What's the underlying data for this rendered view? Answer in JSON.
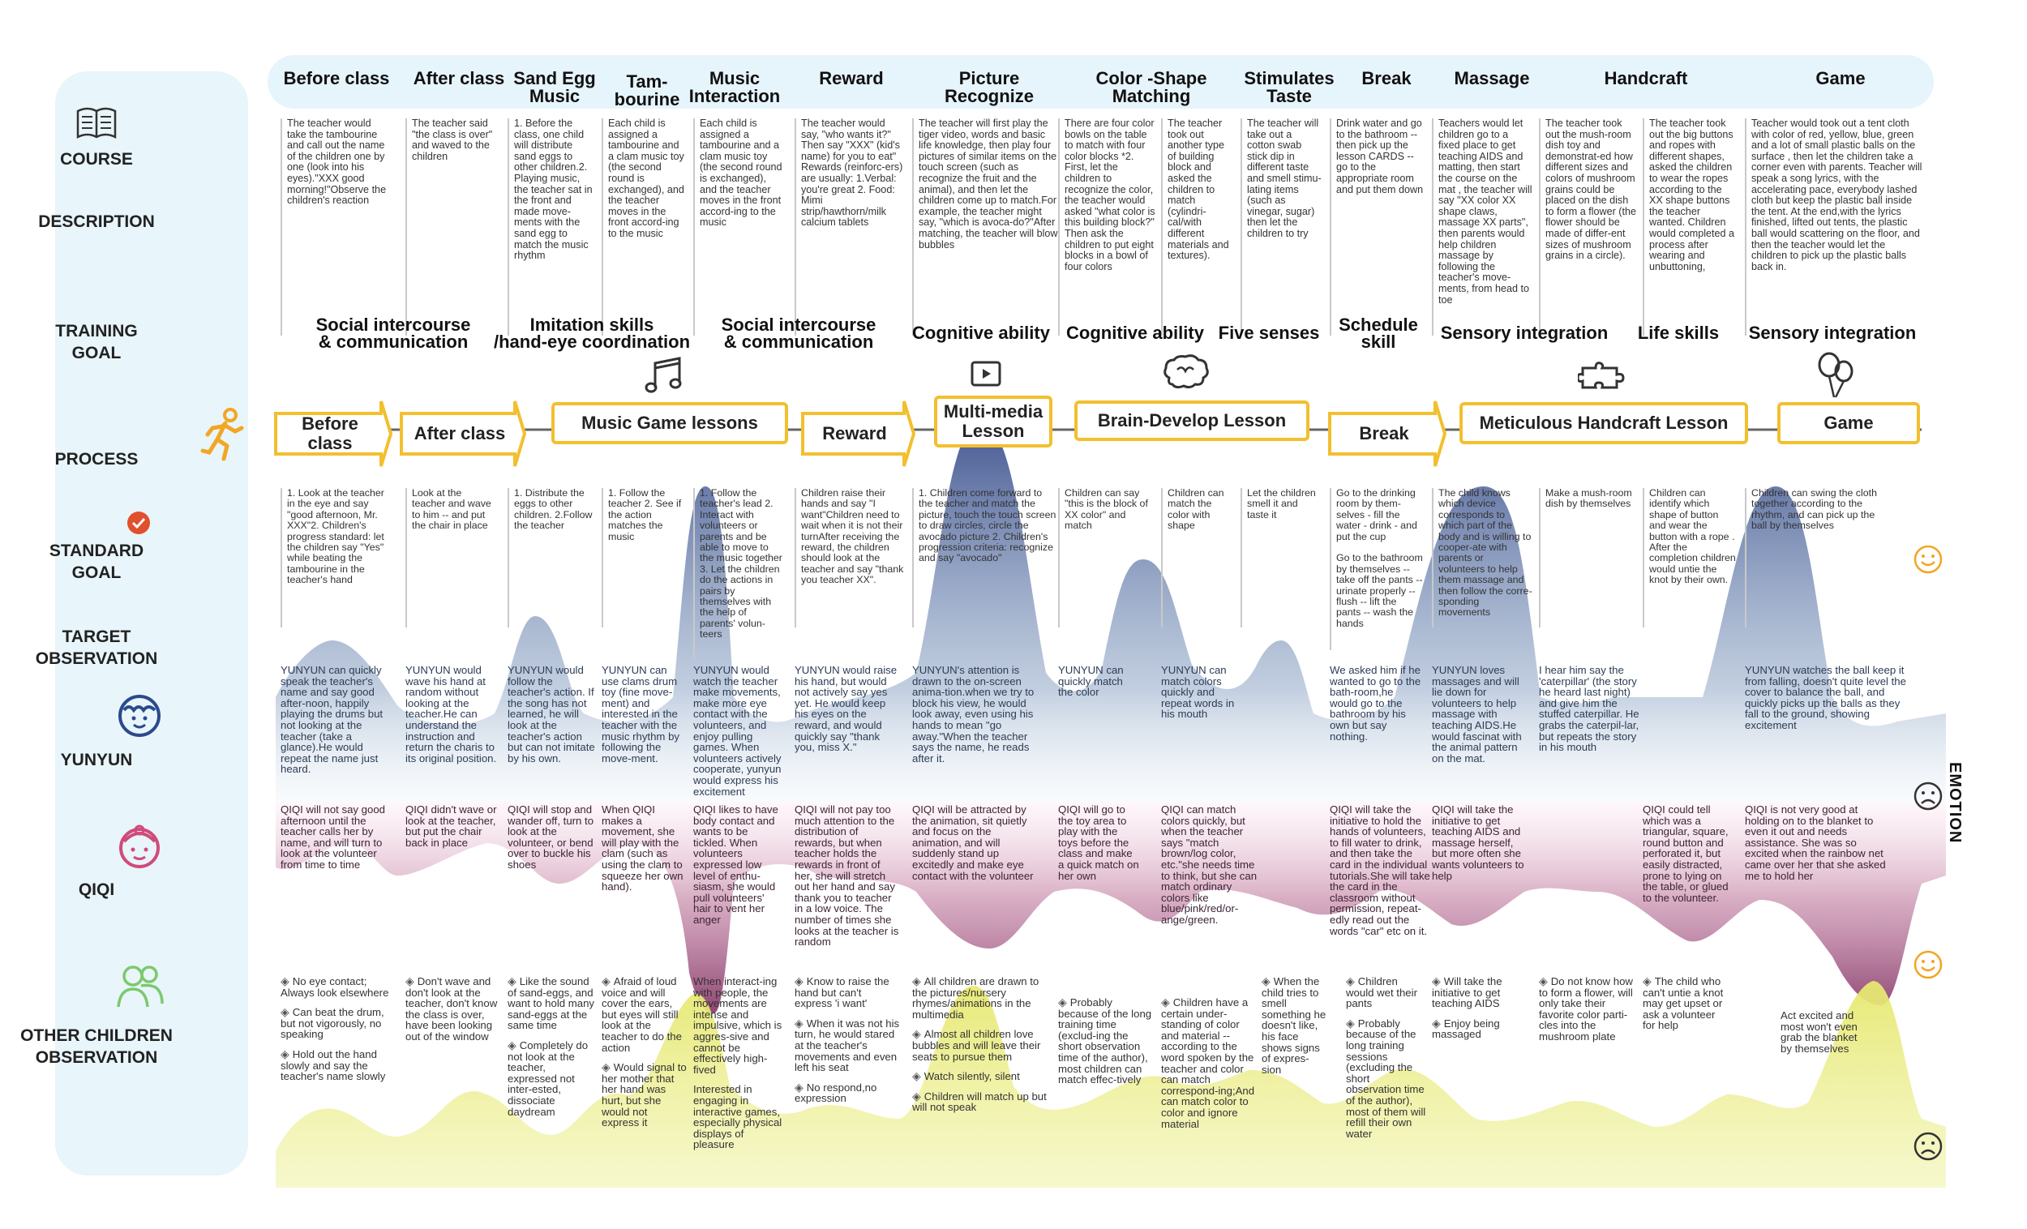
{
  "row_labels": {
    "course": "COURSE",
    "description": "DESCRIPTION",
    "training_goal": "TRAINING\nGOAL",
    "process": "PROCESS",
    "standard_goal": "STANDARD\nGOAL",
    "target_observation": "TARGET\nOBSERVATION",
    "yunyun": "YUNYUN",
    "qiqi": "QIQI",
    "other_children": "OTHER CHILDREN\nOBSERVATION"
  },
  "emotion_label": "EMOTION",
  "phases": [
    {
      "label": "Before class",
      "desc": "The teacher would take the tambourine and call out the name of the children one by one (look into his eyes).\"XXX good morning!\"Observe the children's reaction"
    },
    {
      "label": "After class",
      "desc": "The teacher said \"the class is over\" and waved to the children"
    },
    {
      "label": "Sand Egg\nMusic",
      "desc": "1. Before the class, one child will distribute sand eggs to other children.2. Playing music, the teacher sat in the front and made move-ments with the sand egg to match the music rhythm"
    },
    {
      "label": "Tam-\nbourine",
      "desc": "Each child is assigned a tambourine and a clam music toy (the second round is exchanged), and the teacher moves in the front accord-ing to the music"
    },
    {
      "label": "Music\nInteraction",
      "desc": "Each child is assigned a tambourine and a clam music toy (the second round is exchanged), and the teacher moves in the front accord-ing to the music"
    },
    {
      "label": "Reward",
      "desc": "The teacher would say, \"who wants it?\" Then say \"XXX\" (kid's name) for you to eat\" Rewards (reinforc-ers) are usually: 1.Verbal: you're great 2. Food: Mimi strip/hawthorn/milk calcium tablets"
    },
    {
      "label": "Picture\nRecognize",
      "desc": "The teacher will first play the tiger video, words and basic life knowledge, then play four pictures of similar items on the touch screen (such as recognize the fruit and the animal), and then let the children come up to match.For example, the teacher might say, \"which is avoca-do?\"After matching, the teacher will blow bubbles"
    },
    {
      "label": "Color -Shape\nMatching",
      "desc": "There are four color bowls on the table to match with four color blocks *2. First, let the children to recognize the color, the teacher would asked \"what color is this building block?\" Then ask the children to put eight blocks in a bowl of four colors"
    },
    {
      "label": "",
      "desc": "The teacher took out another type of building block and asked the children to match (cylindri-cal/with different materials and textures)."
    },
    {
      "label": "Stimulates\nTaste",
      "desc": "The teacher will take out a cotton swab stick dip in different taste and smell stimu-lating items (such as vinegar, sugar) then let the children to try"
    },
    {
      "label": "Break",
      "desc": "Drink water and go to the bathroom -- then pick up the lesson CARDS -- go to the appropriate room and put them down"
    },
    {
      "label": "Massage",
      "desc": "Teachers would let children go to a fixed place to get teaching AIDS and matting, then start the course on the mat , the teacher will say \"XX color XX shape claws, massage XX parts\", then parents would help children massage by following the teacher's move-ments, from head to toe"
    },
    {
      "label": "Handcraft",
      "desc": "The teacher took out the mush-room dish toy and demonstrat-ed how different sizes and colors of mushroom grains could be placed on the dish to form a flower (the flower should be made of differ-ent sizes of mushroom grains in a circle)."
    },
    {
      "label": "",
      "desc": "The teacher took out the big buttons and ropes with different shapes, asked the children to wear the ropes according to the XX shape buttons the teacher wanted. Children would completed a process after wearing and unbuttoning,"
    },
    {
      "label": "Game",
      "desc": "Teacher would took out a tent cloth with color of red, yellow, blue, green and a lot of small plastic balls on the surface , then let the children take a corner even with parents. Teacher will speak a song lyrics, with the accelerating pace, everybody lashed cloth but keep the plastic ball inside the tent. At the end,with the lyrics finished, lifted out tents, the plastic ball would scattering on the floor, and then the teacher would let the children to pick up the plastic balls back in."
    }
  ],
  "training_goals": [
    "Social intercourse\n& communication",
    "Imitation skills\n/hand-eye coordination",
    "Social intercourse\n& communication",
    "Cognitive ability",
    "Cognitive ability",
    "Five senses",
    "Schedule\nskill",
    "Sensory integration",
    "Life skills",
    "Sensory integration"
  ],
  "process": [
    "Before class",
    "After class",
    "Music Game lessons",
    "Reward",
    "Multi-media\nLesson",
    "Brain-Develop Lesson",
    "Break",
    "Meticulous Handcraft Lesson",
    "Game"
  ],
  "standard_goals": [
    "1. Look at the teacher in the eye and say \"good afternoon, Mr. XXX\"2. Children's progress standard: let the children say \"Yes\" while beating the tambourine in the teacher's hand",
    "Look at the teacher and wave to him -- and put the chair in place",
    "1. Distribute the eggs to other children. 2.Follow the teacher",
    "1. Follow the teacher 2. See if the action matches the music",
    "1. Follow the teacher's lead 2. Interact with volunteers or parents and be able to move to the music together 3. Let the children do the actions in pairs by themselves with the help of parents' volun-teers",
    "Children raise their hands and say \"I want\"Children need to wait when it is not their turnAfter receiving the reward, the children should look at the teacher and say \"thank you teacher XX\".",
    "1. Children come forward to the teacher and match the picture, touch the touch screen to draw circles, circle the avocado picture 2. Children's progression criteria: recognize and say \"avocado\"",
    "Children can say \"this is the block of XX color\" and match",
    "Children can match the color with shape",
    "Let the children smell it and taste it",
    "Go to the drinking room by them-selves - fill the water - drink - and put the cup\n\nGo to the bathroom by themselves -- take off the pants -- urinate properly -- flush -- lift the pants -- wash the hands",
    "The child knows which device corresponds to which part of the body and is willing to cooper-ate with parents or volunteers to help them massage and then follow the corre-sponding movements",
    "Make a mush-room dish by themselves",
    "Children can identify which shape of button and wear the button with a rope . After the completion children would untie the knot by their own.",
    "Children can swing the cloth together according to the rhythm, and can pick up the ball by themselves"
  ],
  "yunyun_obs": [
    "YUNYUN can quickly speak the teacher's name and say good after-noon, happily playing the drums but not looking at the teacher (take a glance).He would repeat the name just heard.",
    "YUNYUN would wave his hand at random without looking at the teacher.He can understand the instruction and return the charis to its original position.",
    "YUNYUN would follow the teacher's action. If the song has not learned, he will look at the teacher's action but can not imitate by his own.",
    "YUNYUN can use clams drum toy (fine move-ment) and interested in the teacher with the music rhythm by following the move-ment.",
    "YUNYUN would watch the teacher make movements, make more eye contact with the volunteers, and enjoy pulling games. When volunteers actively cooperate, yunyun would express his excitement",
    "YUNYUN would raise his hand, but would not actively say yes yet. He would keep his eyes on the reward, and would quickly say \"thank you, miss X.\"",
    "YUNYUN's attention is drawn to the on-screen anima-tion.when we try to block his view, he would look away, even using his hands to mean \"go away.\"When the teacher says the name, he reads after it.",
    "YUNYUN can quickly match the color",
    "YUNYUN can match colors quickly and repeat words in his mouth",
    "",
    "We asked him if he wanted to go to the bath-room,he would go to the bathroom by his own but say nothing.",
    "YUNYUN loves massages and will lie down for volunteers to help massage with teaching AIDS.He would fascinat with the animal pattern on the mat.",
    "I hear him say the 'caterpillar' (the story he heard last night) and give him the stuffed caterpillar. He grabs the caterpil-lar, but repeats the story in his mouth",
    "",
    "YUNYUN watches the ball keep it from falling, doesn't quite level the cover to balance the ball, and quickly picks up the balls as they fall to the ground, showing excitement"
  ],
  "qiqi_obs": [
    "QIQI will not say good afternoon until the teacher calls her by name, and will turn to look at the volunteer from time to time",
    "QIQI didn't wave or look at the teacher, but put the chair back in place",
    "QIQI will stop and wander off, turn to look at the volunteer, or bend over to buckle his shoes",
    "When QIQI makes a movement, she will play with the clam (such as using the clam to squeeze her own hand).",
    "QIQI likes to have body contact and wants to be tickled. When volunteers expressed low level of enthu-siasm, she would pull volunteers' hair to vent her anger",
    "QIQI will not pay too much attention to the distribution of rewards, but when teacher holds the rewards in front of her, she will stretch out her hand and say thank you to teacher in a low voice. The number of times she looks at the teacher is random",
    "QIQI will be attracted by the animation, sit quietly and focus on the animation, and will suddenly stand up excitedly and make eye contact with the volunteer",
    "QIQI will go to the toy area to play with the toys before the class and make a quick match on her own",
    "QIQI can match colors quickly, but when the teacher says \"match brown/log color, etc.\"she needs time to think, but she can match ordinary colors like blue/pink/red/or-ange/green.",
    "",
    "QIQI will take the initiative to hold the hands of volunteers, to fill water to drink, and then take the card in the individual tutorials.She will take the card in the classroom without permission, repeat-edly read out the words \"car\" etc on it.",
    "QIQI will take the initiative to get teaching AIDS and massage herself, but more often she wants volunteers to help",
    "",
    "QIQI could tell which was a triangular, square, round button and perforated it, but easily distracted, prone to lying on the table, or glued to the volunteer.",
    "QIQI is not very good at holding on to the blanket to even it out and needs assistance. She was so excited when the rainbow net came over her that she asked me to hold her"
  ],
  "other_obs": [
    [
      "No eye contact; Always look elsewhere",
      "Can beat the drum, but not vigorously, no speaking",
      "Hold out the hand slowly and say the teacher's name slowly"
    ],
    [
      "Don't wave and don't look at the teacher, don't know the class is over, have been looking out of the window"
    ],
    [
      "Like the sound of sand-eggs, and want to hold many sand-eggs at the same time",
      "Completely do not look at the teacher, expressed not inter-ested, dissociate daydream"
    ],
    [
      "Afraid of loud voice and will cover the ears, but eyes will still look at the teacher to do the action",
      "Would signal to her mother that her hand was hurt, but she would not express it"
    ],
    [
      "When interact-ing with people, the movements are intense and impulsive, which is aggres-sive and cannot be effectively high-fived",
      "Interested in engaging in interactive games, especially physical displays of pleasure"
    ],
    [
      "Know to raise the hand but can't express 'i want'",
      "When it was not his turn, he would stared at the teacher's movements and even left his seat",
      "No respond,no expression"
    ],
    [
      "All children are drawn to the pictures/nursery rhymes/animations in the multimedia",
      "Almost all children love bubbles and will leave their seats to pursue them",
      "Watch silently, silent",
      "Children will match up but will not speak"
    ],
    [
      "Probably because of the long training time (exclud-ing the short observation time of the author), most children can match effec-tively"
    ],
    [
      "Children have a certain under-standing of color and material -- according to the word spoken by the teacher and color can match correspond-ing;And can match color to color and ignore material"
    ],
    [
      "When the child tries to smell something he doesn't like, his face shows signs of expres-sion"
    ],
    [
      "Children would wet their pants",
      "Probably because of the long training sessions (excluding the short observation time of the author), most of them will refill their own water"
    ],
    [
      "Will take the initiative to get teaching AIDS",
      "Enjoy being massaged"
    ],
    [
      "Do not know how to form a flower, will only take their favorite color parti-cles into the mushroom plate"
    ],
    [
      "The child who can't untie a knot may get upset or ask a volunteer for help"
    ],
    [
      "Act excited and most won't even grab the blanket by themselves"
    ]
  ],
  "colors": {
    "yunyun_wave": "#4a5f96",
    "qiqi_wave": "#8e4472",
    "other_wave": "#e2e46a",
    "process_border": "#f2bf2e",
    "runner": "#f2a623",
    "check": "#e0502c",
    "label_panel": "#e8f5fb"
  }
}
